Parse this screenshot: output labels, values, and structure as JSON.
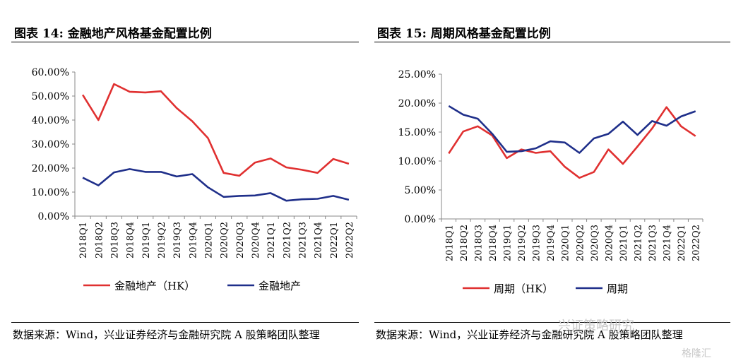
{
  "chart_data": [
    {
      "type": "line",
      "title": "图表 14:  金融地产风格基金配置比例",
      "xlabel": "",
      "ylabel": "",
      "ylim": [
        0,
        60
      ],
      "y_ticks": [
        "0.00%",
        "10.00%",
        "20.00%",
        "30.00%",
        "40.00%",
        "50.00%",
        "60.00%"
      ],
      "categories": [
        "2018Q1",
        "2018Q2",
        "2018Q3",
        "2018Q4",
        "2019Q1",
        "2019Q2",
        "2019Q3",
        "2019Q4",
        "2020Q1",
        "2020Q2",
        "2020Q3",
        "2020Q4",
        "2021Q1",
        "2021Q2",
        "2021Q3",
        "2021Q4",
        "2022Q1",
        "2022Q2"
      ],
      "series": [
        {
          "name": "金融地产（HK）",
          "color": "#e03030",
          "values": [
            50.5,
            40.0,
            55.0,
            51.8,
            51.5,
            52.0,
            45.0,
            39.5,
            32.5,
            18.0,
            16.8,
            22.3,
            24.0,
            20.3,
            19.3,
            18.0,
            23.8,
            21.8
          ]
        },
        {
          "name": "金融地产",
          "color": "#1f2f8a",
          "values": [
            16.0,
            12.8,
            18.2,
            19.6,
            18.4,
            18.4,
            16.5,
            17.5,
            12.0,
            8.0,
            8.4,
            8.6,
            9.6,
            6.4,
            7.0,
            7.2,
            8.4,
            6.8
          ]
        }
      ],
      "legend": "bottom",
      "grid": false,
      "source": "数据来源：Wind，兴业证券经济与金融研究院 A 股策略团队整理"
    },
    {
      "type": "line",
      "title": "图表 15:  周期风格基金配置比例",
      "xlabel": "",
      "ylabel": "",
      "ylim": [
        0,
        25
      ],
      "y_ticks": [
        "0.00%",
        "5.00%",
        "10.00%",
        "15.00%",
        "20.00%",
        "25.00%"
      ],
      "categories": [
        "2018Q1",
        "2018Q2",
        "2018Q3",
        "2018Q4",
        "2019Q1",
        "2019Q2",
        "2019Q3",
        "2019Q4",
        "2020Q1",
        "2020Q2",
        "2020Q3",
        "2020Q4",
        "2021Q1",
        "2021Q2",
        "2021Q3",
        "2021Q4",
        "2022Q1",
        "2022Q2"
      ],
      "series": [
        {
          "name": "周期（HK）",
          "color": "#e03030",
          "values": [
            11.3,
            15.1,
            16.0,
            14.4,
            10.5,
            12.0,
            11.4,
            11.7,
            9.0,
            7.1,
            8.1,
            12.0,
            9.5,
            12.5,
            15.6,
            19.3,
            16.0,
            14.3
          ]
        },
        {
          "name": "周期",
          "color": "#1f2f8a",
          "values": [
            19.5,
            18.0,
            17.3,
            14.7,
            11.6,
            11.7,
            12.2,
            13.4,
            13.2,
            11.4,
            13.9,
            14.7,
            16.8,
            14.5,
            16.9,
            16.1,
            17.7,
            18.6
          ]
        }
      ],
      "legend": "bottom",
      "grid": false,
      "source": "数据来源：Wind，兴业证券经济与金融研究院 A 股策略团队整理"
    }
  ],
  "watermark": {
    "main": "兴证策略研究",
    "sub": "格隆汇"
  }
}
